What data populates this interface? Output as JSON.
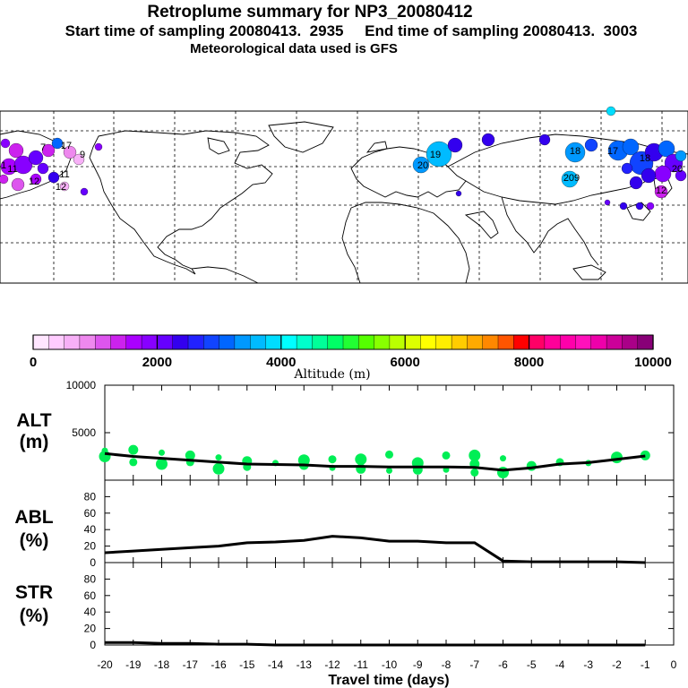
{
  "header": {
    "title": "Retroplume summary for NP3_20080412",
    "subtitle": "Start time of sampling 20080413.  2935     End time of sampling 20080413.  3003",
    "met": "Meteorological data used is GFS"
  },
  "colorbar": {
    "label": "Altitude (m)",
    "ticks": [
      "0",
      "2000",
      "4000",
      "6000",
      "8000",
      "10000"
    ],
    "colors": [
      "#ffe6ff",
      "#ffccff",
      "#f7b0f7",
      "#ee88ee",
      "#dd55ee",
      "#cc22ee",
      "#aa00ff",
      "#8800ff",
      "#6600ff",
      "#3300ee",
      "#2222ff",
      "#1144ff",
      "#0066ff",
      "#0099ff",
      "#00bbff",
      "#00ddff",
      "#00ffff",
      "#00ffcc",
      "#00ff99",
      "#00ff66",
      "#22ff33",
      "#55ff00",
      "#88ff00",
      "#bbff00",
      "#ddff00",
      "#ffff00",
      "#ffee00",
      "#ffcc00",
      "#ffaa00",
      "#ff8800",
      "#ff5500",
      "#ff0000",
      "#ff0066",
      "#ff0099",
      "#ff00aa",
      "#ff11bb",
      "#ee00aa",
      "#cc0099",
      "#aa0088",
      "#880077"
    ]
  },
  "map": {
    "markers": [
      "1",
      "7",
      "9",
      "11",
      "12",
      "11",
      "12",
      "17",
      "19",
      "20",
      "18",
      "209",
      "12",
      "17",
      "18",
      "20"
    ]
  },
  "chart_data": [
    {
      "type": "line",
      "panel": "ALT",
      "label_line1": "ALT",
      "label_line2": "(m)",
      "ylim": [
        0,
        10000
      ],
      "yticks": [
        "10000",
        "5000"
      ],
      "x": [
        -20,
        -19,
        -18,
        -17,
        -16,
        -15,
        -14,
        -13,
        -12,
        -11,
        -10,
        -9,
        -8,
        -7,
        -6,
        -5,
        -4,
        -3,
        -2,
        -1
      ],
      "values": [
        2800,
        2500,
        2300,
        2100,
        1900,
        1700,
        1650,
        1600,
        1450,
        1450,
        1400,
        1400,
        1400,
        1350,
        1050,
        1300,
        1700,
        1850,
        2200,
        2550
      ],
      "scatter": [
        {
          "x": -20,
          "y": 3100
        },
        {
          "x": -20,
          "y": 2500
        },
        {
          "x": -19,
          "y": 3200
        },
        {
          "x": -19,
          "y": 1900
        },
        {
          "x": -18,
          "y": 2900
        },
        {
          "x": -18,
          "y": 1700
        },
        {
          "x": -17,
          "y": 2600
        },
        {
          "x": -17,
          "y": 1900
        },
        {
          "x": -16,
          "y": 2400
        },
        {
          "x": -16,
          "y": 1200
        },
        {
          "x": -15,
          "y": 2000
        },
        {
          "x": -15,
          "y": 1400
        },
        {
          "x": -14,
          "y": 1800
        },
        {
          "x": -13,
          "y": 2100
        },
        {
          "x": -13,
          "y": 1600
        },
        {
          "x": -12,
          "y": 2200
        },
        {
          "x": -12,
          "y": 1300
        },
        {
          "x": -11,
          "y": 2200
        },
        {
          "x": -11,
          "y": 1200
        },
        {
          "x": -10,
          "y": 2700
        },
        {
          "x": -10,
          "y": 1000
        },
        {
          "x": -9,
          "y": 1800
        },
        {
          "x": -9,
          "y": 1100
        },
        {
          "x": -8,
          "y": 2600
        },
        {
          "x": -8,
          "y": 1100
        },
        {
          "x": -7,
          "y": 2600
        },
        {
          "x": -7,
          "y": 1700
        },
        {
          "x": -7,
          "y": 800
        },
        {
          "x": -6,
          "y": 2300
        },
        {
          "x": -6,
          "y": 800
        },
        {
          "x": -5,
          "y": 1500
        },
        {
          "x": -4,
          "y": 1900
        },
        {
          "x": -3,
          "y": 1800
        },
        {
          "x": -2,
          "y": 2400
        },
        {
          "x": -1,
          "y": 2600
        }
      ],
      "line_color": "#000000",
      "point_color": "#00ee55"
    },
    {
      "type": "line",
      "panel": "ABL",
      "label_line1": "ABL",
      "label_line2": "(%)",
      "ylim": [
        0,
        100
      ],
      "yticks": [
        "80",
        "60",
        "40",
        "20",
        "0"
      ],
      "x": [
        -20,
        -19,
        -18,
        -17,
        -16,
        -15,
        -14,
        -13,
        -12,
        -11,
        -10,
        -9,
        -8,
        -7,
        -6,
        -5,
        -4,
        -3,
        -2,
        -1
      ],
      "values": [
        12,
        14,
        16,
        18,
        20,
        24,
        25,
        27,
        32,
        30,
        26,
        26,
        24,
        24,
        2,
        1,
        1,
        1,
        1,
        0
      ],
      "line_color": "#000000"
    },
    {
      "type": "line",
      "panel": "STR",
      "label_line1": "STR",
      "label_line2": "(%)",
      "ylim": [
        0,
        100
      ],
      "yticks": [
        "80",
        "60",
        "40",
        "20",
        "0"
      ],
      "x": [
        -20,
        -19,
        -18,
        -17,
        -16,
        -15,
        -14,
        -13,
        -12,
        -11,
        -10,
        -9,
        -8,
        -7,
        -6,
        -5,
        -4,
        -3,
        -2,
        -1
      ],
      "values": [
        3,
        3,
        2,
        2,
        1,
        1,
        0,
        0,
        0,
        0,
        0,
        0,
        0,
        0,
        0,
        0,
        0,
        0,
        0,
        0
      ],
      "line_color": "#000000"
    }
  ],
  "xaxis": {
    "title": "Travel time (days)",
    "ticks": [
      "-20",
      "-19",
      "-18",
      "-17",
      "-16",
      "-15",
      "-14",
      "-13",
      "-12",
      "-11",
      "-10",
      "-9",
      "-8",
      "-7",
      "-6",
      "-5",
      "-4",
      "-3",
      "-2",
      "-1",
      "0"
    ]
  }
}
